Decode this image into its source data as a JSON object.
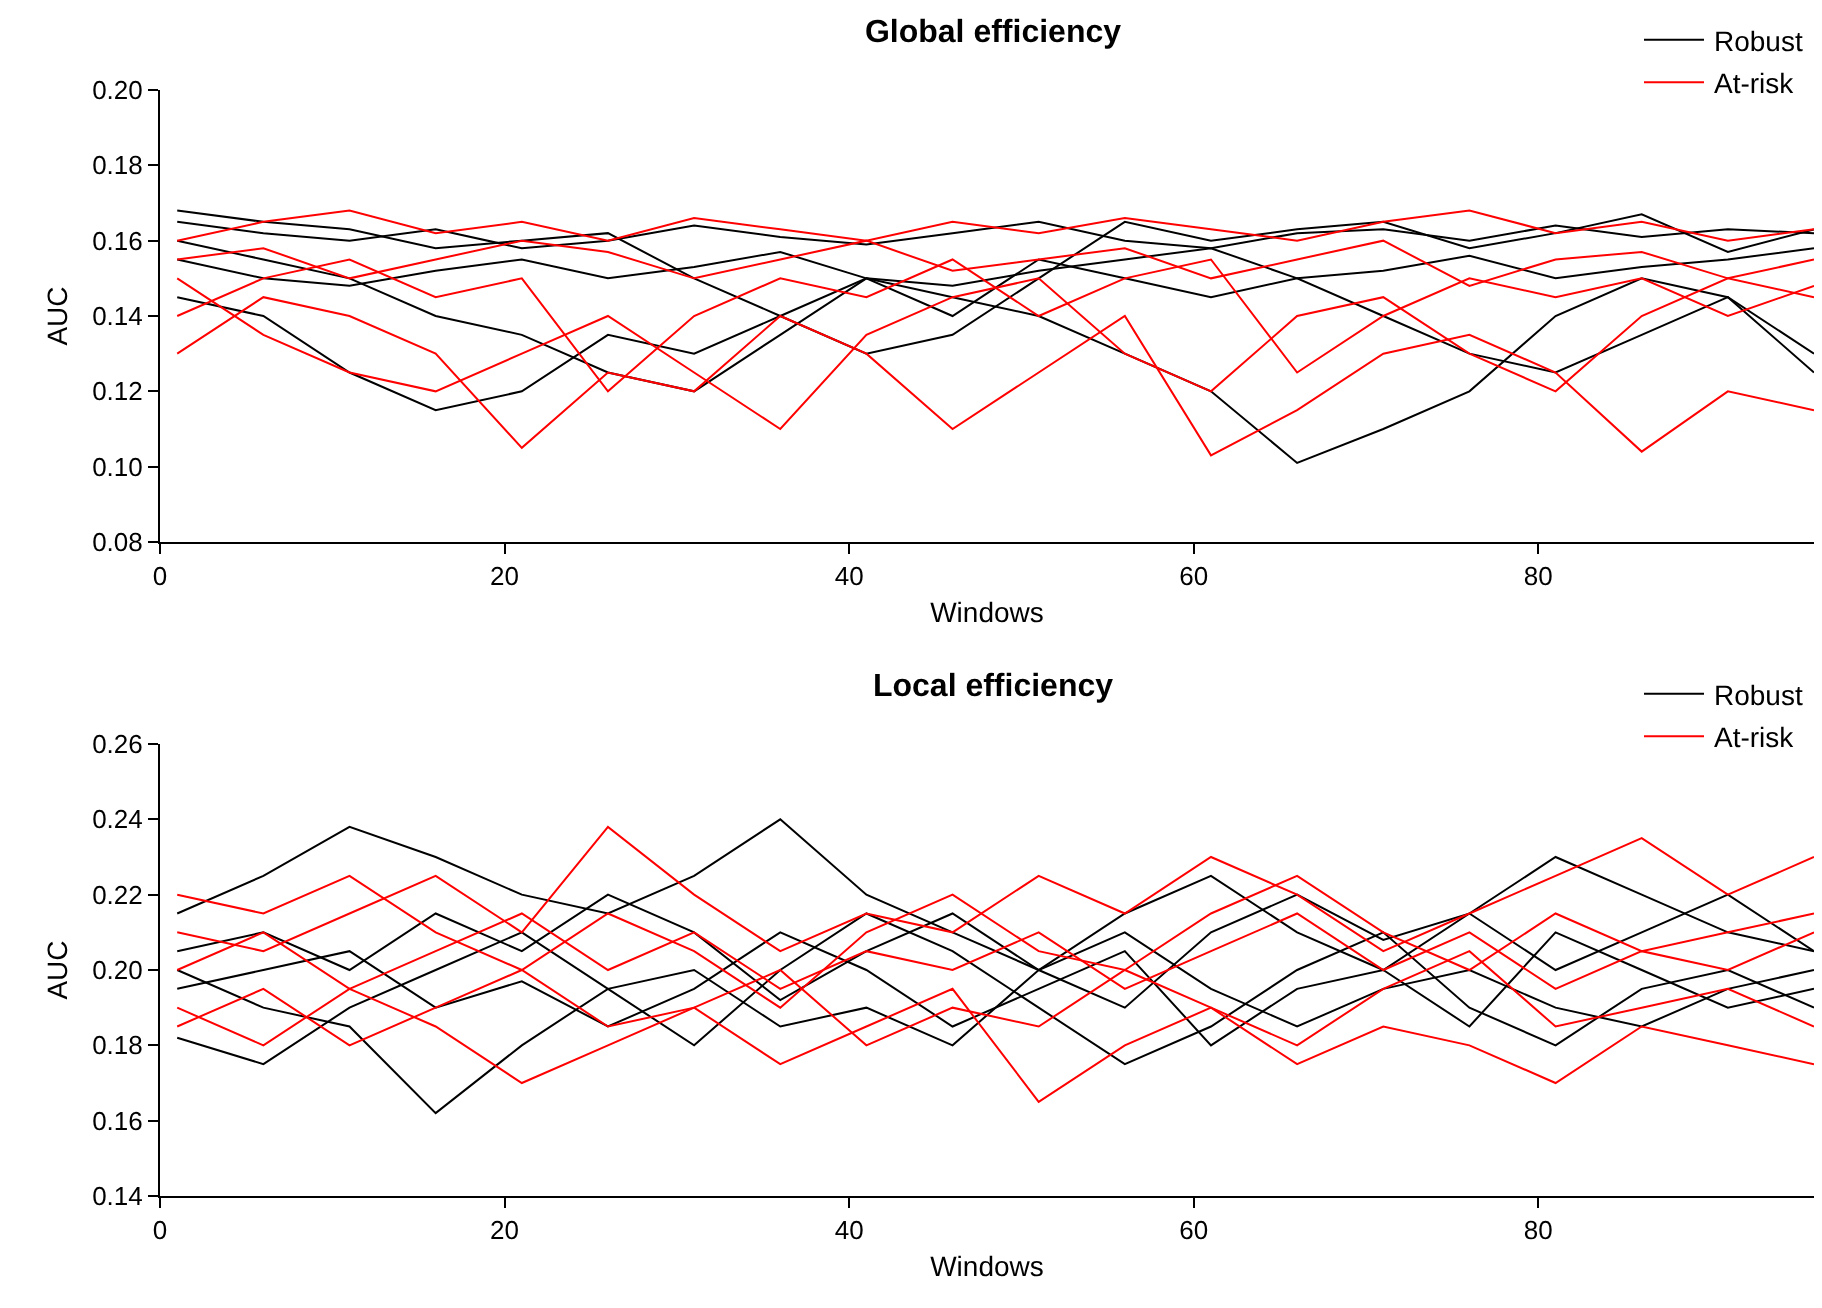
{
  "chart_data": [
    {
      "type": "line",
      "title": "Global efficiency",
      "xlabel": "Windows",
      "ylabel": "AUC",
      "xlim": [
        0,
        96
      ],
      "xticks": [
        0,
        20,
        40,
        60,
        80
      ],
      "ylim": [
        0.08,
        0.2
      ],
      "yticks": [
        {
          "value": 0.08,
          "label": "0.08"
        },
        {
          "value": 0.1,
          "label": "0.10"
        },
        {
          "value": 0.12,
          "label": "0.12"
        },
        {
          "value": 0.14,
          "label": "0.14"
        },
        {
          "value": 0.16,
          "label": "0.16"
        },
        {
          "value": 0.18,
          "label": "0.18"
        },
        {
          "value": 0.2,
          "label": "0.20"
        }
      ],
      "grid": false,
      "legend": "top right",
      "marker": "none",
      "line_style": "solid",
      "x": [
        1,
        6,
        11,
        16,
        21,
        26,
        31,
        36,
        41,
        46,
        51,
        56,
        61,
        66,
        71,
        76,
        81,
        86,
        91,
        96
      ],
      "series": [
        {
          "name": "Robust",
          "color": "#000000",
          "values": [
            0.165,
            0.162,
            0.16,
            0.163,
            0.158,
            0.16,
            0.164,
            0.161,
            0.159,
            0.162,
            0.165,
            0.16,
            0.158,
            0.162,
            0.163,
            0.16,
            0.164,
            0.161,
            0.163,
            0.162
          ]
        },
        {
          "color": "#000000",
          "values": [
            0.155,
            0.15,
            0.148,
            0.152,
            0.155,
            0.15,
            0.153,
            0.157,
            0.15,
            0.148,
            0.152,
            0.155,
            0.158,
            0.15,
            0.152,
            0.156,
            0.15,
            0.153,
            0.155,
            0.158
          ]
        },
        {
          "color": "#000000",
          "values": [
            0.145,
            0.14,
            0.125,
            0.115,
            0.12,
            0.135,
            0.13,
            0.14,
            0.15,
            0.145,
            0.14,
            0.13,
            0.12,
            0.101,
            0.11,
            0.12,
            0.14,
            0.15,
            0.145,
            0.13
          ]
        },
        {
          "color": "#000000",
          "values": [
            0.16,
            0.155,
            0.15,
            0.14,
            0.135,
            0.125,
            0.12,
            0.135,
            0.15,
            0.14,
            0.155,
            0.15,
            0.145,
            0.15,
            0.14,
            0.13,
            0.125,
            0.135,
            0.145,
            0.125
          ]
        },
        {
          "color": "#000000",
          "values": [
            0.168,
            0.165,
            0.163,
            0.158,
            0.16,
            0.162,
            0.15,
            0.14,
            0.13,
            0.135,
            0.15,
            0.165,
            0.16,
            0.163,
            0.165,
            0.158,
            0.162,
            0.167,
            0.157,
            0.163
          ]
        },
        {
          "name": "At-risk",
          "color": "#ff0000",
          "values": [
            0.13,
            0.145,
            0.14,
            0.13,
            0.105,
            0.125,
            0.12,
            0.14,
            0.13,
            0.11,
            0.125,
            0.14,
            0.103,
            0.115,
            0.13,
            0.135,
            0.125,
            0.104,
            0.12,
            0.115
          ]
        },
        {
          "color": "#ff0000",
          "values": [
            0.16,
            0.165,
            0.168,
            0.162,
            0.165,
            0.16,
            0.166,
            0.163,
            0.16,
            0.165,
            0.162,
            0.166,
            0.163,
            0.16,
            0.165,
            0.168,
            0.162,
            0.165,
            0.16,
            0.163
          ]
        },
        {
          "color": "#ff0000",
          "values": [
            0.15,
            0.135,
            0.125,
            0.12,
            0.13,
            0.14,
            0.125,
            0.11,
            0.135,
            0.145,
            0.15,
            0.13,
            0.12,
            0.14,
            0.145,
            0.13,
            0.12,
            0.14,
            0.15,
            0.145
          ]
        },
        {
          "color": "#ff0000",
          "values": [
            0.14,
            0.15,
            0.155,
            0.145,
            0.15,
            0.12,
            0.14,
            0.15,
            0.145,
            0.155,
            0.14,
            0.15,
            0.155,
            0.125,
            0.14,
            0.15,
            0.145,
            0.15,
            0.14,
            0.148
          ]
        },
        {
          "color": "#ff0000",
          "values": [
            0.155,
            0.158,
            0.15,
            0.155,
            0.16,
            0.157,
            0.15,
            0.155,
            0.16,
            0.152,
            0.155,
            0.158,
            0.15,
            0.155,
            0.16,
            0.148,
            0.155,
            0.157,
            0.15,
            0.155
          ]
        }
      ]
    },
    {
      "type": "line",
      "title": "Local efficiency",
      "xlabel": "Windows",
      "ylabel": "AUC",
      "xlim": [
        0,
        96
      ],
      "xticks": [
        0,
        20,
        40,
        60,
        80
      ],
      "ylim": [
        0.14,
        0.26
      ],
      "yticks": [
        {
          "value": 0.14,
          "label": "0.14"
        },
        {
          "value": 0.16,
          "label": "0.16"
        },
        {
          "value": 0.18,
          "label": "0.18"
        },
        {
          "value": 0.2,
          "label": "0.20"
        },
        {
          "value": 0.22,
          "label": "0.22"
        },
        {
          "value": 0.24,
          "label": "0.24"
        },
        {
          "value": 0.26,
          "label": "0.26"
        }
      ],
      "grid": false,
      "legend": "top right",
      "marker": "none",
      "line_style": "solid",
      "x": [
        1,
        6,
        11,
        16,
        21,
        26,
        31,
        36,
        41,
        46,
        51,
        56,
        61,
        66,
        71,
        76,
        81,
        86,
        91,
        96
      ],
      "series": [
        {
          "name": "Robust",
          "color": "#000000",
          "values": [
            0.215,
            0.225,
            0.238,
            0.23,
            0.22,
            0.215,
            0.225,
            0.24,
            0.22,
            0.21,
            0.2,
            0.215,
            0.225,
            0.21,
            0.2,
            0.215,
            0.23,
            0.22,
            0.21,
            0.205
          ]
        },
        {
          "color": "#000000",
          "values": [
            0.2,
            0.19,
            0.185,
            0.162,
            0.18,
            0.195,
            0.2,
            0.185,
            0.19,
            0.18,
            0.2,
            0.21,
            0.195,
            0.185,
            0.195,
            0.2,
            0.19,
            0.185,
            0.195,
            0.2
          ]
        },
        {
          "color": "#000000",
          "values": [
            0.182,
            0.175,
            0.19,
            0.2,
            0.21,
            0.195,
            0.18,
            0.2,
            0.215,
            0.205,
            0.19,
            0.175,
            0.185,
            0.2,
            0.21,
            0.19,
            0.18,
            0.195,
            0.2,
            0.19
          ]
        },
        {
          "color": "#000000",
          "values": [
            0.205,
            0.21,
            0.2,
            0.215,
            0.205,
            0.22,
            0.21,
            0.192,
            0.205,
            0.215,
            0.2,
            0.19,
            0.21,
            0.22,
            0.208,
            0.215,
            0.2,
            0.21,
            0.22,
            0.205
          ]
        },
        {
          "color": "#000000",
          "values": [
            0.195,
            0.2,
            0.205,
            0.19,
            0.197,
            0.185,
            0.195,
            0.21,
            0.2,
            0.185,
            0.195,
            0.205,
            0.18,
            0.195,
            0.2,
            0.185,
            0.21,
            0.2,
            0.19,
            0.195
          ]
        },
        {
          "name": "At-risk",
          "color": "#ff0000",
          "values": [
            0.21,
            0.205,
            0.215,
            0.225,
            0.21,
            0.238,
            0.22,
            0.205,
            0.215,
            0.21,
            0.225,
            0.215,
            0.23,
            0.22,
            0.205,
            0.215,
            0.225,
            0.235,
            0.22,
            0.23
          ]
        },
        {
          "color": "#ff0000",
          "values": [
            0.19,
            0.18,
            0.195,
            0.185,
            0.17,
            0.18,
            0.19,
            0.175,
            0.185,
            0.195,
            0.165,
            0.18,
            0.19,
            0.175,
            0.185,
            0.18,
            0.17,
            0.185,
            0.18,
            0.175
          ]
        },
        {
          "color": "#ff0000",
          "values": [
            0.2,
            0.21,
            0.195,
            0.205,
            0.215,
            0.2,
            0.21,
            0.195,
            0.205,
            0.2,
            0.21,
            0.195,
            0.205,
            0.215,
            0.2,
            0.21,
            0.195,
            0.205,
            0.2,
            0.21
          ]
        },
        {
          "color": "#ff0000",
          "values": [
            0.22,
            0.215,
            0.225,
            0.21,
            0.2,
            0.215,
            0.205,
            0.19,
            0.21,
            0.22,
            0.205,
            0.2,
            0.215,
            0.225,
            0.21,
            0.2,
            0.215,
            0.205,
            0.21,
            0.215
          ]
        },
        {
          "color": "#ff0000",
          "values": [
            0.185,
            0.195,
            0.18,
            0.19,
            0.2,
            0.185,
            0.19,
            0.2,
            0.18,
            0.19,
            0.185,
            0.2,
            0.19,
            0.18,
            0.195,
            0.205,
            0.185,
            0.19,
            0.195,
            0.185
          ]
        }
      ]
    }
  ]
}
